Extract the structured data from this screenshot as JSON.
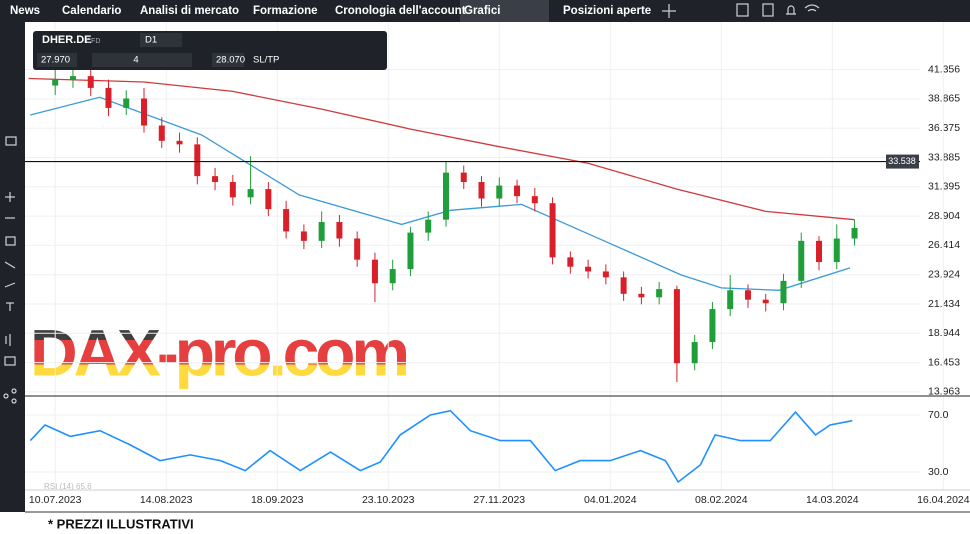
{
  "nav": {
    "items": [
      "News",
      "Calendario",
      "Analisi di mercato",
      "Formazione",
      "Cronologia dell'account",
      "Grafici",
      "Posizioni aperte"
    ]
  },
  "toolbar": {
    "symbol": "DHER.DE",
    "kind": "CFD",
    "timeframe": "D1",
    "bid": "27.970",
    "volume": "4",
    "ask": "28.070",
    "sltp": "SL/TP"
  },
  "watermark": "DAX-pro.com",
  "footer": "* PREZZI ILLUSTRATIVI",
  "chart_data": {
    "type": "candlestick",
    "xlim": [
      -6.8,
      206
    ],
    "xticks": [
      {
        "value": 0,
        "label": "10.07.2023"
      },
      {
        "value": 25,
        "label": "14.08.2023"
      },
      {
        "value": 50,
        "label": "18.09.2023"
      },
      {
        "value": 75,
        "label": "23.10.2023"
      },
      {
        "value": 100,
        "label": "27.11.2023"
      },
      {
        "value": 125,
        "label": "04.01.2024"
      },
      {
        "value": 150,
        "label": "08.02.2024"
      },
      {
        "value": 175,
        "label": "14.03.2024"
      },
      {
        "value": 200,
        "label": "16.04.2024"
      }
    ],
    "ylim": [
      13.7,
      45.4
    ],
    "yticks": [
      41.356,
      38.865,
      36.375,
      33.885,
      31.395,
      28.904,
      26.414,
      23.924,
      21.434,
      18.944,
      16.453,
      13.963
    ],
    "up_color": "#1f9e3a",
    "down_color": "#d9202a",
    "candles": {
      "x": [
        0,
        4,
        8,
        12,
        16,
        20,
        24,
        28,
        32,
        36,
        40,
        44,
        48,
        52,
        56,
        60,
        64,
        68,
        72,
        76,
        80,
        84,
        88,
        92,
        96,
        100,
        104,
        108,
        112,
        116,
        120,
        124,
        128,
        132,
        136,
        140,
        144,
        148,
        152,
        156,
        160,
        164,
        168,
        172,
        176,
        180
      ],
      "open": [
        40.0,
        40.5,
        40.8,
        39.8,
        38.1,
        38.9,
        36.6,
        35.3,
        35.0,
        32.3,
        31.8,
        30.5,
        31.2,
        29.5,
        27.6,
        26.8,
        28.4,
        27.0,
        25.2,
        23.2,
        24.4,
        27.5,
        28.6,
        32.6,
        31.8,
        30.4,
        31.5,
        30.6,
        30.0,
        25.4,
        24.6,
        24.2,
        23.7,
        22.3,
        22.0,
        22.7,
        16.4,
        18.2,
        21.0,
        22.6,
        21.8,
        21.5,
        23.4,
        26.8,
        25.0,
        27.0
      ],
      "high": [
        42.0,
        41.5,
        41.4,
        40.5,
        39.6,
        39.8,
        37.3,
        36.0,
        35.6,
        33.0,
        32.4,
        34.0,
        31.8,
        30.2,
        28.2,
        29.3,
        29.0,
        27.6,
        25.8,
        25.2,
        28.0,
        29.3,
        33.5,
        33.2,
        32.3,
        32.2,
        32.0,
        31.3,
        30.5,
        25.9,
        25.2,
        24.8,
        24.2,
        22.9,
        23.3,
        23.0,
        18.8,
        21.6,
        23.9,
        23.1,
        22.3,
        24.0,
        27.5,
        27.2,
        28.2,
        28.6
      ],
      "low": [
        39.2,
        39.8,
        39.1,
        37.4,
        37.5,
        36.0,
        34.7,
        34.3,
        31.6,
        31.1,
        29.8,
        29.9,
        28.9,
        27.0,
        26.1,
        26.2,
        26.3,
        24.6,
        21.6,
        22.6,
        23.8,
        26.8,
        28.0,
        31.2,
        29.7,
        29.8,
        30.0,
        29.3,
        24.8,
        24.0,
        23.6,
        23.1,
        21.7,
        21.4,
        21.4,
        14.8,
        15.8,
        17.6,
        20.4,
        21.1,
        20.8,
        20.9,
        22.8,
        24.3,
        24.4,
        26.4
      ],
      "close": [
        40.5,
        40.8,
        39.8,
        38.1,
        38.9,
        36.6,
        35.3,
        35.0,
        32.3,
        31.8,
        30.5,
        31.2,
        29.5,
        27.6,
        26.8,
        28.4,
        27.0,
        25.2,
        23.2,
        24.4,
        27.5,
        28.6,
        32.6,
        31.8,
        30.4,
        31.5,
        30.6,
        30.0,
        25.4,
        24.6,
        24.2,
        23.7,
        22.3,
        22.0,
        22.7,
        16.4,
        18.2,
        21.0,
        22.6,
        21.8,
        21.5,
        23.4,
        26.8,
        25.0,
        27.0,
        27.9
      ]
    },
    "series": [
      {
        "color": "#d03a3a",
        "x": [
          -6,
          20,
          40,
          60,
          80,
          100,
          120,
          140,
          160,
          180
        ],
        "values": [
          40.6,
          40.3,
          39.5,
          38.0,
          36.3,
          34.8,
          33.4,
          31.2,
          29.3,
          28.6
        ]
      },
      {
        "color": "#3a9ad9",
        "x": [
          -5.6,
          10,
          33,
          55,
          78,
          89,
          105,
          123,
          141,
          150,
          163,
          179
        ],
        "values": [
          37.5,
          39.0,
          35.8,
          30.7,
          28.2,
          29.4,
          29.9,
          26.9,
          23.9,
          22.8,
          22.6,
          24.5
        ]
      }
    ],
    "hline": {
      "value": 33.538,
      "label": "33.538"
    },
    "rsi": {
      "label": "RSI (14) 65.6",
      "color": "#1e90ff",
      "ylim": [
        17.4,
        82.6
      ],
      "yticks": [
        {
          "value": 70,
          "label": "70.0"
        },
        {
          "value": 30,
          "label": "30.0"
        }
      ],
      "x": [
        -5.6,
        -2.3,
        3.4,
        10.1,
        16.9,
        23.6,
        30.4,
        37.2,
        42.8,
        48.4,
        55.2,
        62,
        68.7,
        73.2,
        77.7,
        84.5,
        89,
        93.5,
        100.2,
        107,
        112.6,
        118.2,
        125,
        131.8,
        137.4,
        140.3,
        145.3,
        148.6,
        154.3,
        161,
        166.7,
        171.2,
        174.5,
        179.5
      ],
      "values": [
        52,
        63,
        55,
        59,
        49,
        38,
        42,
        38,
        31,
        45,
        31,
        44,
        31,
        37,
        56,
        70,
        73,
        59,
        52,
        52,
        31,
        38,
        38,
        45,
        38,
        23,
        35,
        56,
        52,
        52,
        72,
        56,
        63,
        66
      ]
    }
  }
}
